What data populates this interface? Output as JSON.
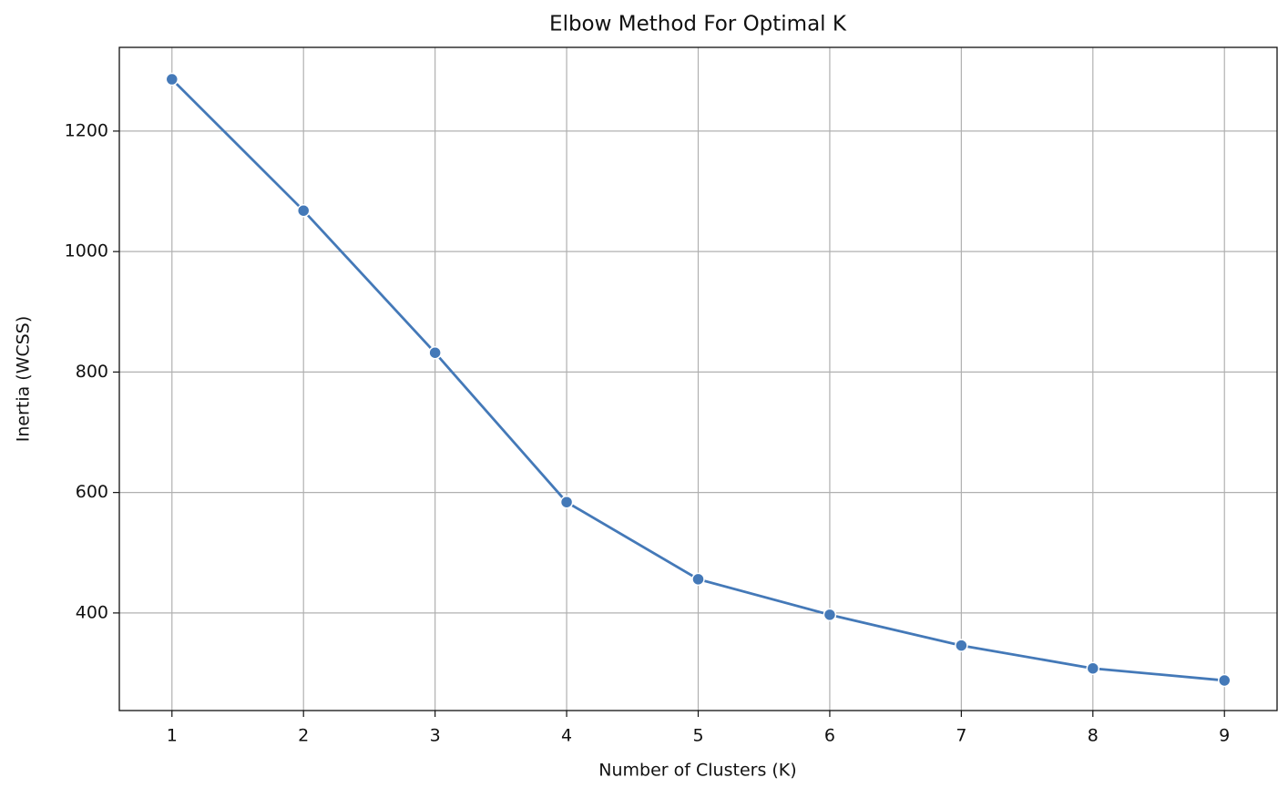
{
  "chart_data": {
    "type": "line",
    "title": "Elbow Method For Optimal K",
    "x_label": "Number of Clusters (K)",
    "y_label": "Inertia (WCSS)",
    "x": [
      1,
      2,
      3,
      4,
      5,
      6,
      7,
      8,
      9
    ],
    "series": [
      {
        "name": "Inertia",
        "color": "#4479b8",
        "values": [
          1286,
          1068,
          832,
          584,
          456,
          397,
          346,
          308,
          288
        ]
      }
    ],
    "xlim": [
      0.6,
      9.4
    ],
    "xticks": [
      1,
      2,
      3,
      4,
      5,
      6,
      7,
      8,
      9
    ],
    "ylim": [
      238,
      1339
    ],
    "yticks": [
      400,
      600,
      800,
      1000,
      1200
    ],
    "grid": true
  }
}
